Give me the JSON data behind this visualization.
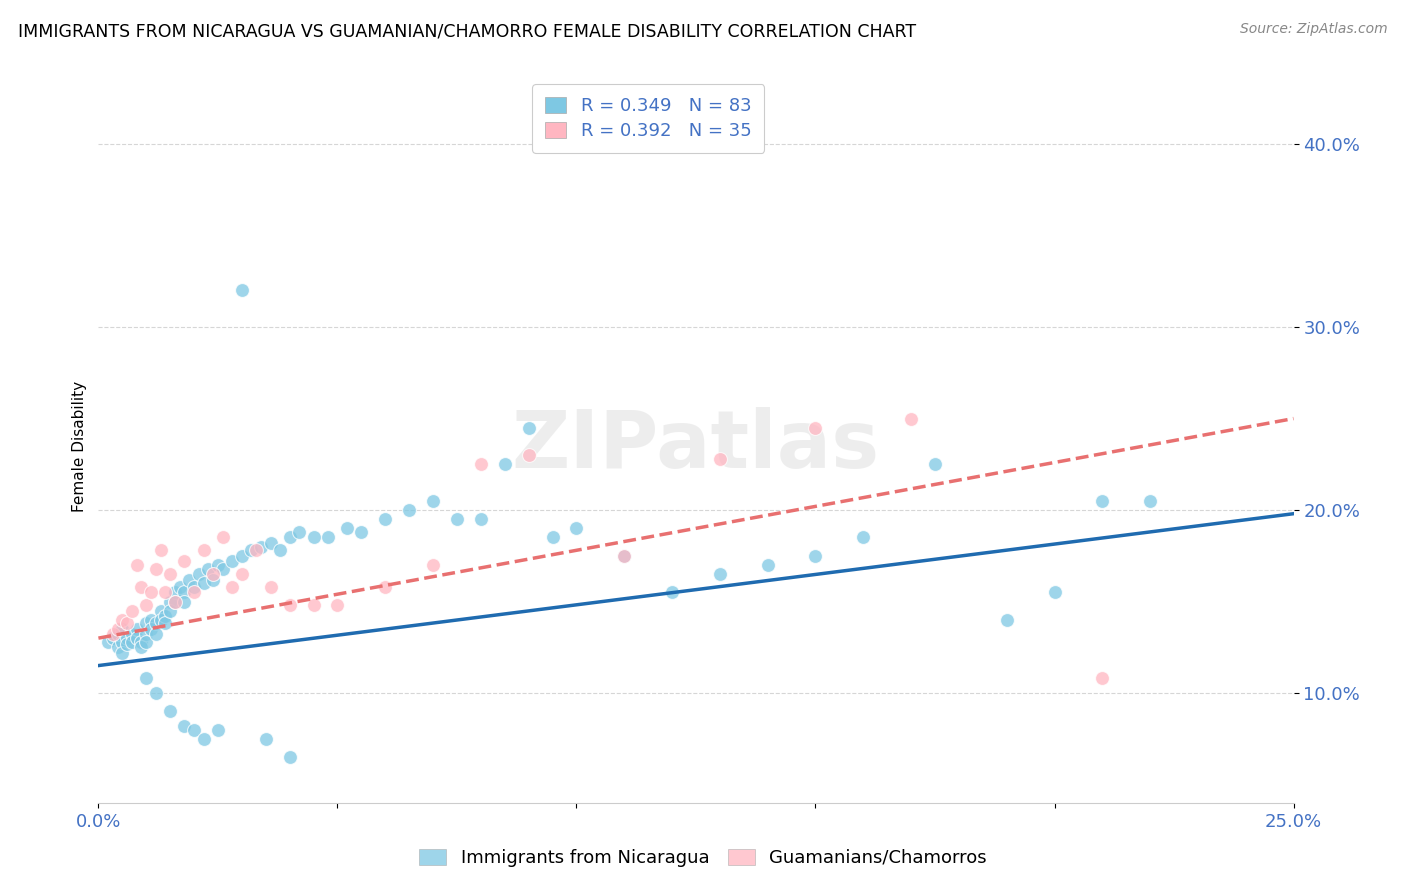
{
  "title": "IMMIGRANTS FROM NICARAGUA VS GUAMANIAN/CHAMORRO FEMALE DISABILITY CORRELATION CHART",
  "source": "Source: ZipAtlas.com",
  "ylabel": "Female Disability",
  "yticks": [
    0.1,
    0.2,
    0.3,
    0.4
  ],
  "ytick_labels": [
    "10.0%",
    "20.0%",
    "30.0%",
    "40.0%"
  ],
  "xlim": [
    0.0,
    0.25
  ],
  "ylim": [
    0.04,
    0.43
  ],
  "legend1_R": "0.349",
  "legend1_N": "83",
  "legend2_R": "0.392",
  "legend2_N": "35",
  "blue_color": "#7ec8e3",
  "pink_color": "#ffb6c1",
  "blue_line_color": "#1f6bb0",
  "pink_line_color": "#e87070",
  "watermark": "ZIPatlas",
  "blue_scatter_x": [
    0.002,
    0.003,
    0.004,
    0.004,
    0.005,
    0.005,
    0.005,
    0.006,
    0.006,
    0.007,
    0.007,
    0.008,
    0.008,
    0.009,
    0.009,
    0.01,
    0.01,
    0.01,
    0.011,
    0.011,
    0.012,
    0.012,
    0.013,
    0.013,
    0.014,
    0.014,
    0.015,
    0.015,
    0.016,
    0.016,
    0.017,
    0.018,
    0.018,
    0.019,
    0.02,
    0.021,
    0.022,
    0.023,
    0.024,
    0.025,
    0.026,
    0.028,
    0.03,
    0.032,
    0.034,
    0.036,
    0.038,
    0.04,
    0.042,
    0.045,
    0.048,
    0.052,
    0.055,
    0.06,
    0.065,
    0.07,
    0.075,
    0.08,
    0.085,
    0.09,
    0.095,
    0.1,
    0.11,
    0.12,
    0.13,
    0.14,
    0.15,
    0.16,
    0.175,
    0.19,
    0.2,
    0.21,
    0.22,
    0.01,
    0.012,
    0.015,
    0.018,
    0.02,
    0.022,
    0.025,
    0.03,
    0.035,
    0.04
  ],
  "blue_scatter_y": [
    0.128,
    0.13,
    0.125,
    0.132,
    0.128,
    0.135,
    0.122,
    0.13,
    0.127,
    0.132,
    0.128,
    0.135,
    0.13,
    0.128,
    0.125,
    0.138,
    0.132,
    0.128,
    0.14,
    0.135,
    0.138,
    0.132,
    0.145,
    0.14,
    0.142,
    0.138,
    0.15,
    0.145,
    0.155,
    0.15,
    0.158,
    0.155,
    0.15,
    0.162,
    0.158,
    0.165,
    0.16,
    0.168,
    0.162,
    0.17,
    0.168,
    0.172,
    0.175,
    0.178,
    0.18,
    0.182,
    0.178,
    0.185,
    0.188,
    0.185,
    0.185,
    0.19,
    0.188,
    0.195,
    0.2,
    0.205,
    0.195,
    0.195,
    0.225,
    0.245,
    0.185,
    0.19,
    0.175,
    0.155,
    0.165,
    0.17,
    0.175,
    0.185,
    0.225,
    0.14,
    0.155,
    0.205,
    0.205,
    0.108,
    0.1,
    0.09,
    0.082,
    0.08,
    0.075,
    0.08,
    0.32,
    0.075,
    0.065
  ],
  "pink_scatter_x": [
    0.003,
    0.004,
    0.005,
    0.006,
    0.007,
    0.008,
    0.009,
    0.01,
    0.011,
    0.012,
    0.013,
    0.014,
    0.015,
    0.016,
    0.018,
    0.02,
    0.022,
    0.024,
    0.026,
    0.028,
    0.03,
    0.033,
    0.036,
    0.04,
    0.045,
    0.05,
    0.06,
    0.07,
    0.08,
    0.09,
    0.11,
    0.13,
    0.15,
    0.17,
    0.21
  ],
  "pink_scatter_y": [
    0.132,
    0.135,
    0.14,
    0.138,
    0.145,
    0.17,
    0.158,
    0.148,
    0.155,
    0.168,
    0.178,
    0.155,
    0.165,
    0.15,
    0.172,
    0.155,
    0.178,
    0.165,
    0.185,
    0.158,
    0.165,
    0.178,
    0.158,
    0.148,
    0.148,
    0.148,
    0.158,
    0.17,
    0.225,
    0.23,
    0.175,
    0.228,
    0.245,
    0.25,
    0.108
  ],
  "blue_trendline_x": [
    0.0,
    0.25
  ],
  "blue_trendline_y": [
    0.115,
    0.198
  ],
  "pink_trendline_x": [
    0.0,
    0.25
  ],
  "pink_trendline_y": [
    0.13,
    0.25
  ]
}
